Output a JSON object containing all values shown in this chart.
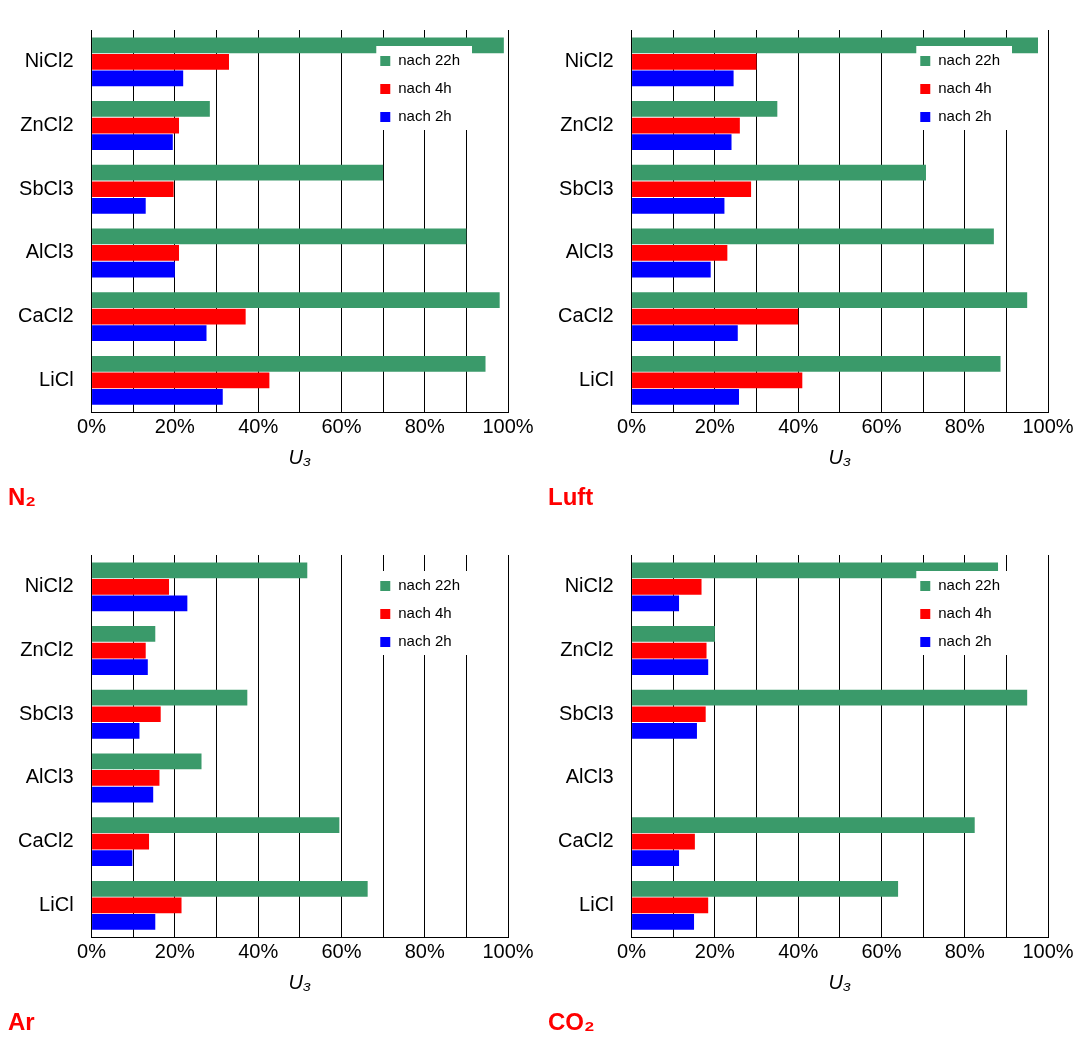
{
  "chart_data": [
    {
      "type": "bar",
      "orientation": "horizontal",
      "title": "N₂",
      "xlabel": "U₃",
      "categories": [
        "NiCl2",
        "ZnCl2",
        "SbCl3",
        "AlCl3",
        "CaCl2",
        "LiCl"
      ],
      "series": [
        {
          "name": "nach 22h",
          "color": "#3a9a6a",
          "values": [
            99,
            28.4,
            70,
            90,
            98,
            94.6
          ]
        },
        {
          "name": "nach 4h",
          "color": "#ff0000",
          "values": [
            33,
            21,
            19.7,
            21,
            37,
            42.7
          ]
        },
        {
          "name": "nach 2h",
          "color": "#0000ff",
          "values": [
            22,
            19.5,
            13,
            20,
            27.6,
            31.5
          ]
        }
      ],
      "xlim": [
        0,
        100
      ],
      "xticks": [
        {
          "value": 0,
          "label": "0%"
        },
        {
          "value": 10,
          "label": null
        },
        {
          "value": 20,
          "label": "20%"
        },
        {
          "value": 30,
          "label": null
        },
        {
          "value": 40,
          "label": "40%"
        },
        {
          "value": 50,
          "label": null
        },
        {
          "value": 60,
          "label": "60%"
        },
        {
          "value": 70,
          "label": null
        },
        {
          "value": 80,
          "label": "80%"
        },
        {
          "value": 90,
          "label": null
        },
        {
          "value": 100,
          "label": "100%"
        }
      ],
      "grid": "x",
      "legend": "top right"
    },
    {
      "type": "bar",
      "orientation": "horizontal",
      "title": "Luft",
      "xlabel": "U₃",
      "categories": [
        "NiCl2",
        "ZnCl2",
        "SbCl3",
        "AlCl3",
        "CaCl2",
        "LiCl"
      ],
      "series": [
        {
          "name": "nach 22h",
          "color": "#3a9a6a",
          "values": [
            97.6,
            35,
            70.7,
            87,
            95,
            88.6
          ]
        },
        {
          "name": "nach 4h",
          "color": "#ff0000",
          "values": [
            30,
            26,
            28.7,
            23,
            40,
            41
          ]
        },
        {
          "name": "nach 2h",
          "color": "#0000ff",
          "values": [
            24.5,
            24,
            22.3,
            19,
            25.5,
            25.8
          ]
        }
      ],
      "xlim": [
        0,
        100
      ],
      "xticks": [
        {
          "value": 0,
          "label": "0%"
        },
        {
          "value": 10,
          "label": null
        },
        {
          "value": 20,
          "label": "20%"
        },
        {
          "value": 30,
          "label": null
        },
        {
          "value": 40,
          "label": "40%"
        },
        {
          "value": 50,
          "label": null
        },
        {
          "value": 60,
          "label": "60%"
        },
        {
          "value": 70,
          "label": null
        },
        {
          "value": 80,
          "label": "80%"
        },
        {
          "value": 90,
          "label": null
        },
        {
          "value": 100,
          "label": "100%"
        }
      ],
      "grid": "x",
      "legend": "top right"
    },
    {
      "type": "bar",
      "orientation": "horizontal",
      "title": "Ar",
      "xlabel": "U₃",
      "categories": [
        "NiCl2",
        "ZnCl2",
        "SbCl3",
        "AlCl3",
        "CaCl2",
        "LiCl"
      ],
      "series": [
        {
          "name": "nach 22h",
          "color": "#3a9a6a",
          "values": [
            51.8,
            15.3,
            37.4,
            26.4,
            59.5,
            66.3
          ]
        },
        {
          "name": "nach 4h",
          "color": "#ff0000",
          "values": [
            18.6,
            13,
            16.6,
            16.3,
            13.8,
            21.6
          ]
        },
        {
          "name": "nach 2h",
          "color": "#0000ff",
          "values": [
            23,
            13.5,
            11.5,
            14.8,
            9.8,
            15.3
          ]
        }
      ],
      "xlim": [
        0,
        100
      ],
      "xticks": [
        {
          "value": 0,
          "label": "0%"
        },
        {
          "value": 10,
          "label": null
        },
        {
          "value": 20,
          "label": "20%"
        },
        {
          "value": 30,
          "label": null
        },
        {
          "value": 40,
          "label": "40%"
        },
        {
          "value": 50,
          "label": null
        },
        {
          "value": 60,
          "label": "60%"
        },
        {
          "value": 70,
          "label": null
        },
        {
          "value": 80,
          "label": "80%"
        },
        {
          "value": 90,
          "label": null
        },
        {
          "value": 100,
          "label": "100%"
        }
      ],
      "grid": "x",
      "legend": "top right"
    },
    {
      "type": "bar",
      "orientation": "horizontal",
      "title": "CO₂",
      "xlabel": "U₃",
      "categories": [
        "NiCl2",
        "ZnCl2",
        "SbCl3",
        "AlCl3",
        "CaCl2",
        "LiCl"
      ],
      "series": [
        {
          "name": "nach 22h",
          "color": "#3a9a6a",
          "values": [
            88,
            20,
            95,
            null,
            82.4,
            64
          ]
        },
        {
          "name": "nach 4h",
          "color": "#ff0000",
          "values": [
            16.8,
            18,
            17.8,
            null,
            15.2,
            18.4
          ]
        },
        {
          "name": "nach 2h",
          "color": "#0000ff",
          "values": [
            11.4,
            18.4,
            15.7,
            null,
            11.4,
            15
          ]
        }
      ],
      "xlim": [
        0,
        100
      ],
      "xticks": [
        {
          "value": 0,
          "label": "0%"
        },
        {
          "value": 10,
          "label": null
        },
        {
          "value": 20,
          "label": "20%"
        },
        {
          "value": 30,
          "label": null
        },
        {
          "value": 40,
          "label": "40%"
        },
        {
          "value": 50,
          "label": null
        },
        {
          "value": 60,
          "label": "60%"
        },
        {
          "value": 70,
          "label": null
        },
        {
          "value": 80,
          "label": "80%"
        },
        {
          "value": 90,
          "label": null
        },
        {
          "value": 100,
          "label": "100%"
        }
      ],
      "grid": "x",
      "legend": "top right"
    }
  ]
}
